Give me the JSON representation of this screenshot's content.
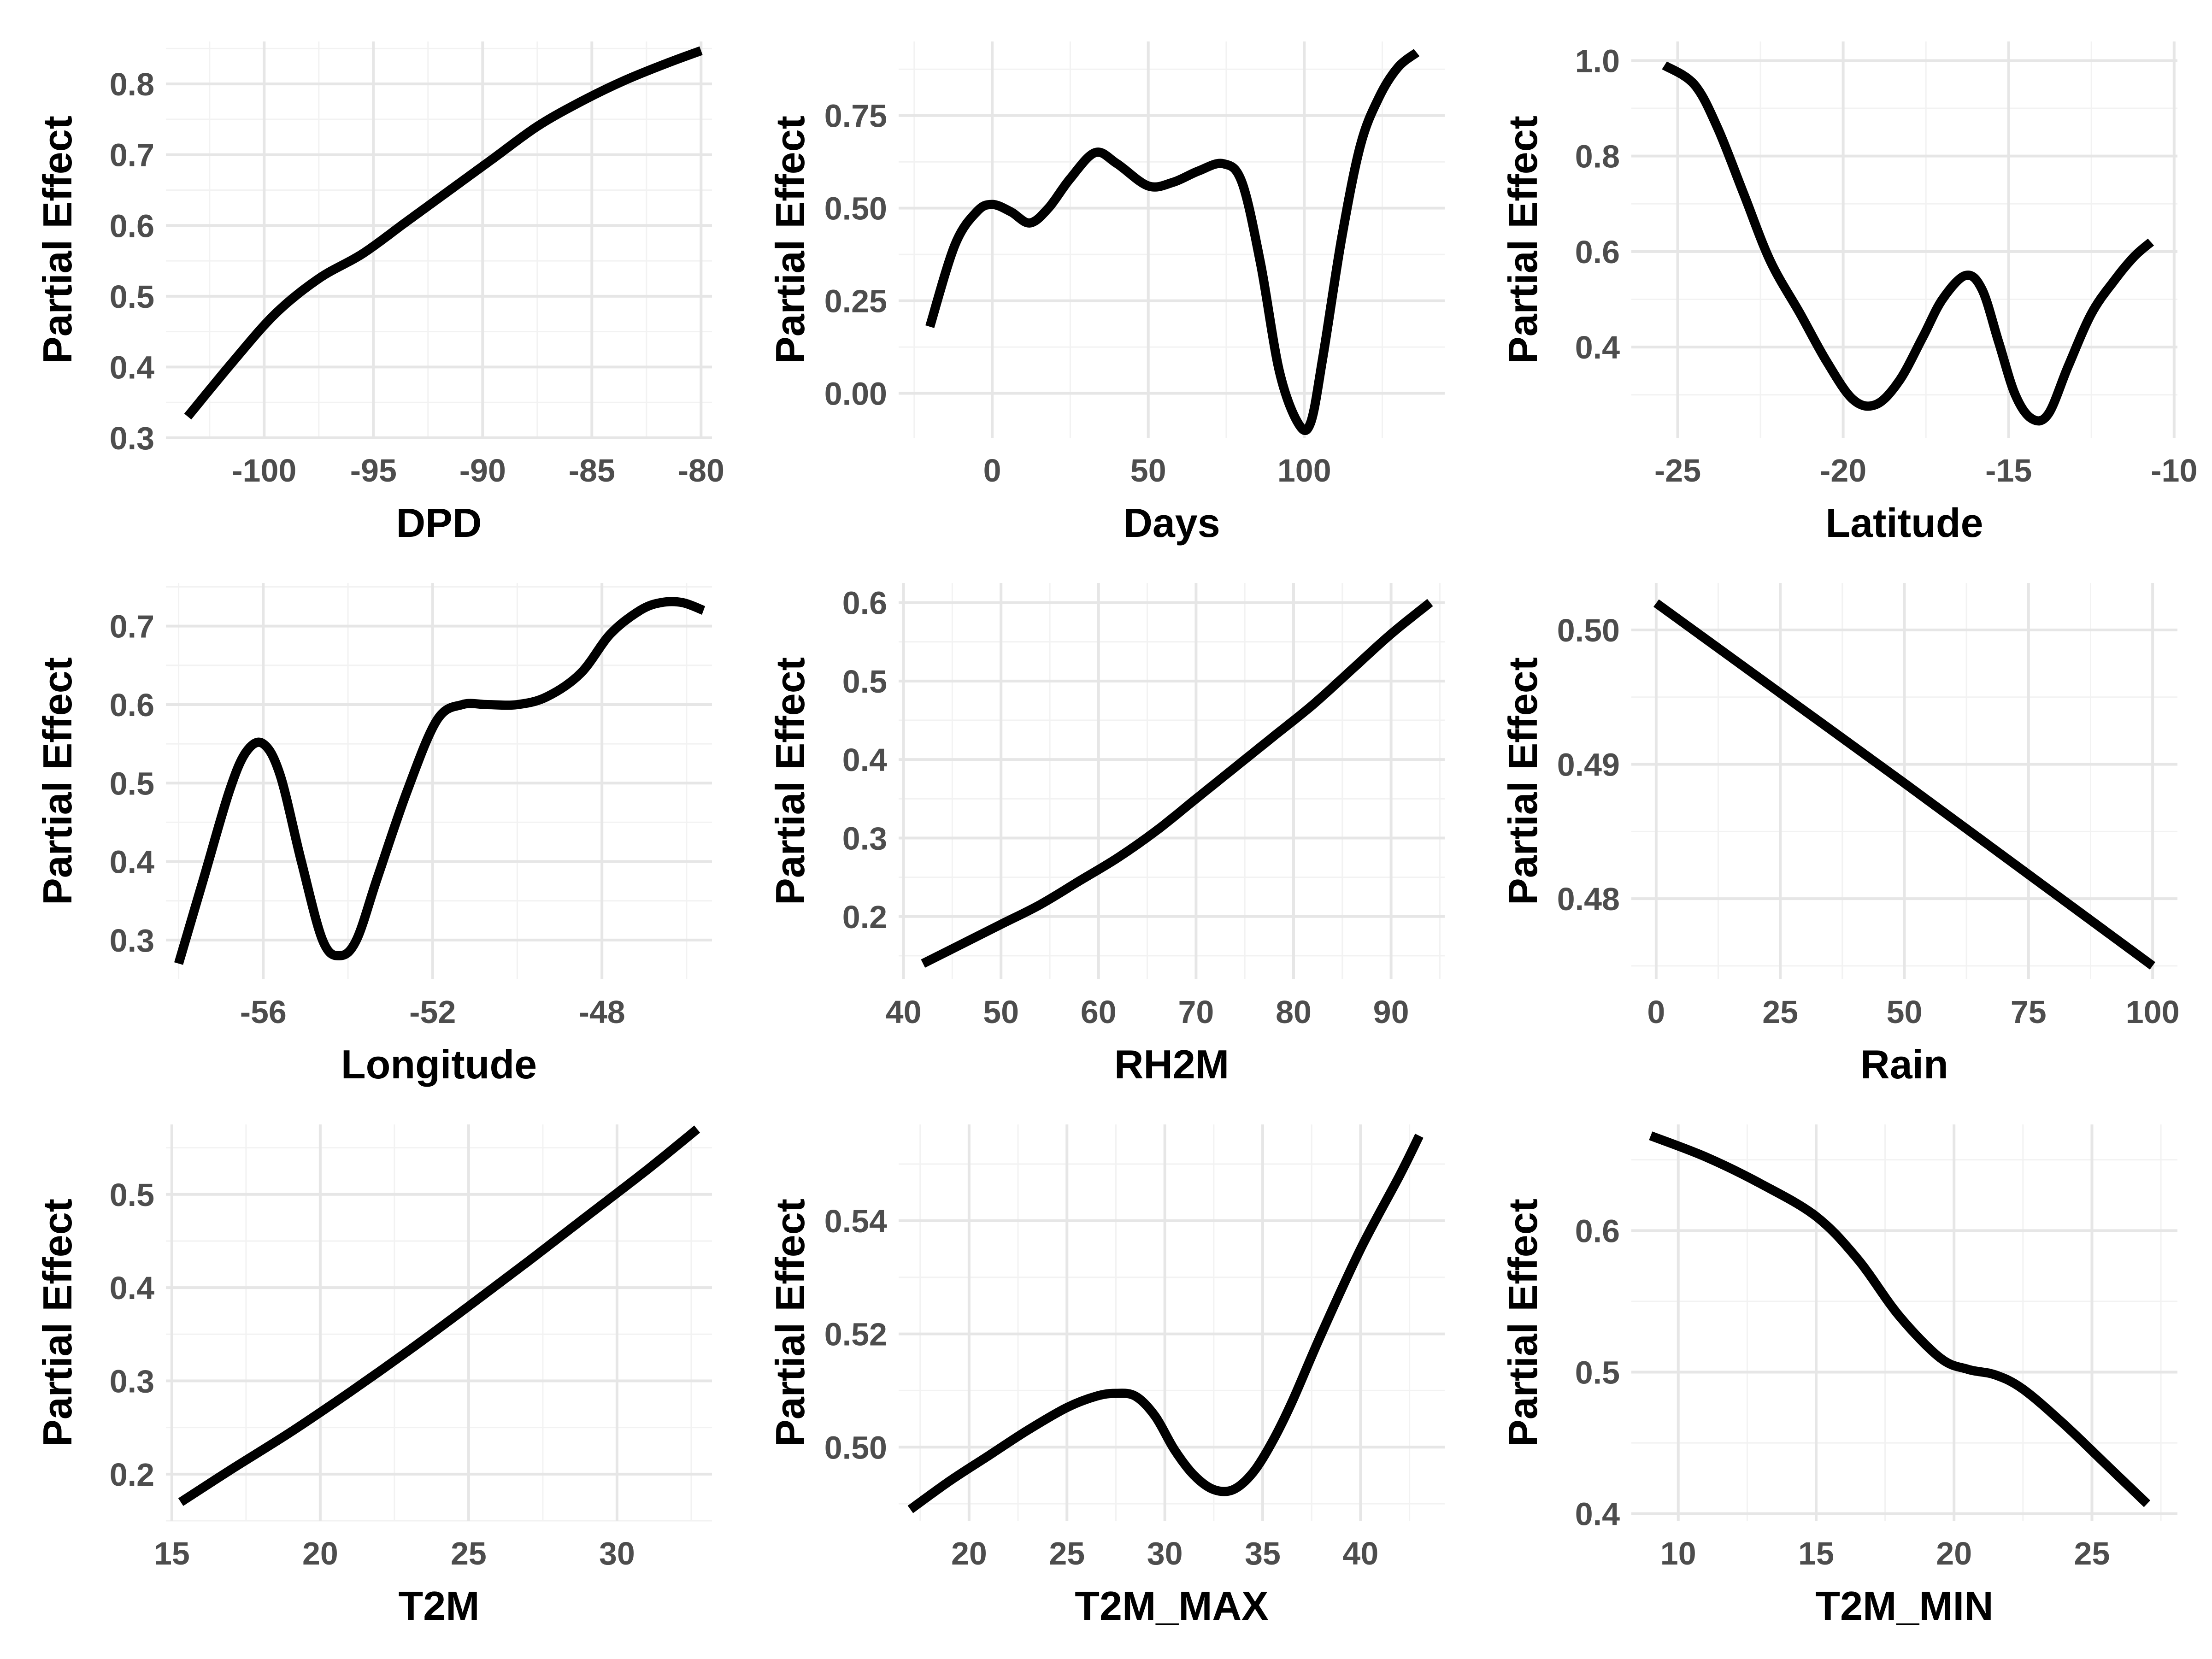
{
  "chart_data": [
    {
      "type": "line",
      "xlabel": "DPD",
      "ylabel": "Partial Effect",
      "xlim": [
        -104.5,
        -79.5
      ],
      "ylim": [
        0.3,
        0.86
      ],
      "xticks": [
        -100,
        -95,
        -90,
        -85,
        -80
      ],
      "xtick_labels": [
        "-100",
        "-95",
        "-90",
        "-85",
        "-80"
      ],
      "yticks": [
        0.3,
        0.4,
        0.5,
        0.6,
        0.7,
        0.8
      ],
      "ytick_labels": [
        "0.3",
        "0.4",
        "0.5",
        "0.6",
        "0.7",
        "0.8"
      ],
      "grid": true,
      "x": [
        -103.5,
        -101.5,
        -99.5,
        -97.5,
        -95.5,
        -93.5,
        -91.5,
        -89.5,
        -87.5,
        -85.5,
        -83.5,
        -81.5,
        -80
      ],
      "y": [
        0.33,
        0.405,
        0.475,
        0.525,
        0.56,
        0.605,
        0.65,
        0.695,
        0.74,
        0.775,
        0.805,
        0.83,
        0.847
      ]
    },
    {
      "type": "line",
      "xlabel": "Days",
      "ylabel": "Partial Effect",
      "xlim": [
        -30,
        145
      ],
      "ylim": [
        -0.12,
        0.95
      ],
      "xticks": [
        0,
        50,
        100
      ],
      "xtick_labels": [
        "0",
        "50",
        "100"
      ],
      "yticks": [
        0.0,
        0.25,
        0.5,
        0.75
      ],
      "ytick_labels": [
        "0.00",
        "0.25",
        "0.50",
        "0.75"
      ],
      "grid": true,
      "x": [
        -20,
        -12,
        -5,
        0,
        6,
        12,
        18,
        25,
        33,
        40,
        50,
        58,
        66,
        74,
        80,
        86,
        92,
        98,
        102,
        106,
        112,
        118,
        124,
        130,
        136
      ],
      "y": [
        0.18,
        0.4,
        0.49,
        0.51,
        0.49,
        0.46,
        0.5,
        0.58,
        0.65,
        0.62,
        0.56,
        0.57,
        0.6,
        0.62,
        0.57,
        0.35,
        0.06,
        -0.08,
        -0.08,
        0.1,
        0.42,
        0.67,
        0.8,
        0.88,
        0.92
      ]
    },
    {
      "type": "line",
      "xlabel": "Latitude",
      "ylabel": "Partial Effect",
      "xlim": [
        -26.4,
        -9.9
      ],
      "ylim": [
        0.21,
        1.04
      ],
      "xticks": [
        -25,
        -20,
        -15,
        -10
      ],
      "xtick_labels": [
        "-25",
        "-20",
        "-15",
        "-10"
      ],
      "yticks": [
        0.4,
        0.6,
        0.8,
        1.0
      ],
      "ytick_labels": [
        "0.4",
        "0.6",
        "0.8",
        "1.0"
      ],
      "grid": true,
      "x": [
        -25.4,
        -24.5,
        -23.8,
        -23,
        -22.2,
        -21.3,
        -20.5,
        -19.7,
        -19,
        -18.3,
        -17.6,
        -17,
        -16.3,
        -15.8,
        -15.3,
        -14.8,
        -14.3,
        -13.8,
        -13.2,
        -12.5,
        -11.8,
        -11.2,
        -10.7
      ],
      "y": [
        0.99,
        0.95,
        0.86,
        0.72,
        0.58,
        0.47,
        0.37,
        0.29,
        0.28,
        0.33,
        0.42,
        0.5,
        0.55,
        0.52,
        0.41,
        0.3,
        0.25,
        0.26,
        0.36,
        0.47,
        0.54,
        0.59,
        0.62
      ]
    },
    {
      "type": "line",
      "xlabel": "Longitude",
      "ylabel": "Partial Effect",
      "xlim": [
        -58.3,
        -45.4
      ],
      "ylim": [
        0.25,
        0.755
      ],
      "xticks": [
        -56,
        -52,
        -48
      ],
      "xtick_labels": [
        "-56",
        "-52",
        "-48"
      ],
      "yticks": [
        0.3,
        0.4,
        0.5,
        0.6,
        0.7
      ],
      "ytick_labels": [
        "0.3",
        "0.4",
        "0.5",
        "0.6",
        "0.7"
      ],
      "grid": true,
      "x": [
        -58,
        -57.4,
        -56.8,
        -56.4,
        -56,
        -55.6,
        -55.1,
        -54.6,
        -54.2,
        -53.8,
        -53.3,
        -52.6,
        -51.9,
        -51.3,
        -50.7,
        -50,
        -49.3,
        -48.5,
        -47.8,
        -47.1,
        -46.6,
        -46.1,
        -45.6
      ],
      "y": [
        0.27,
        0.38,
        0.49,
        0.54,
        0.55,
        0.51,
        0.4,
        0.3,
        0.28,
        0.3,
        0.38,
        0.49,
        0.58,
        0.6,
        0.6,
        0.6,
        0.61,
        0.64,
        0.69,
        0.72,
        0.73,
        0.73,
        0.72
      ]
    },
    {
      "type": "line",
      "xlabel": "RH2M",
      "ylabel": "Partial Effect",
      "xlim": [
        39.5,
        95.5
      ],
      "ylim": [
        0.12,
        0.625
      ],
      "xticks": [
        40,
        50,
        60,
        70,
        80,
        90
      ],
      "xtick_labels": [
        "40",
        "50",
        "60",
        "70",
        "80",
        "90"
      ],
      "yticks": [
        0.2,
        0.3,
        0.4,
        0.5,
        0.6
      ],
      "ytick_labels": [
        "0.2",
        "0.3",
        "0.4",
        "0.5",
        "0.6"
      ],
      "grid": true,
      "x": [
        42,
        46,
        50,
        54,
        58,
        62,
        66,
        70,
        74,
        78,
        82,
        86,
        90,
        94
      ],
      "y": [
        0.14,
        0.165,
        0.19,
        0.215,
        0.245,
        0.275,
        0.31,
        0.35,
        0.39,
        0.43,
        0.47,
        0.515,
        0.56,
        0.6
      ]
    },
    {
      "type": "line",
      "xlabel": "Rain",
      "ylabel": "Partial Effect",
      "xlim": [
        -5,
        105
      ],
      "ylim": [
        0.474,
        0.5035
      ],
      "xticks": [
        0,
        25,
        50,
        75,
        100
      ],
      "xtick_labels": [
        "0",
        "25",
        "50",
        "75",
        "100"
      ],
      "yticks": [
        0.48,
        0.49,
        0.5
      ],
      "ytick_labels": [
        "0.48",
        "0.49",
        "0.50"
      ],
      "grid": true,
      "x": [
        0,
        25,
        50,
        75,
        100
      ],
      "y": [
        0.502,
        0.4953,
        0.4886,
        0.4818,
        0.475
      ]
    },
    {
      "type": "line",
      "xlabel": "T2M",
      "ylabel": "Partial Effect",
      "xlim": [
        14.8,
        33.2
      ],
      "ylim": [
        0.15,
        0.575
      ],
      "xticks": [
        15,
        20,
        25,
        30
      ],
      "xtick_labels": [
        "15",
        "20",
        "25",
        "30"
      ],
      "yticks": [
        0.2,
        0.3,
        0.4,
        0.5
      ],
      "ytick_labels": [
        "0.2",
        "0.3",
        "0.4",
        "0.5"
      ],
      "grid": true,
      "x": [
        15.3,
        17,
        19,
        21,
        23,
        25,
        27,
        29,
        31,
        32.7
      ],
      "y": [
        0.17,
        0.205,
        0.245,
        0.288,
        0.333,
        0.38,
        0.428,
        0.477,
        0.526,
        0.57
      ]
    },
    {
      "type": "line",
      "xlabel": "T2M_MAX",
      "ylabel": "Partial Effect",
      "xlim": [
        16.4,
        44.3
      ],
      "ylim": [
        0.487,
        0.557
      ],
      "xticks": [
        20,
        25,
        30,
        35,
        40
      ],
      "xtick_labels": [
        "20",
        "25",
        "30",
        "35",
        "40"
      ],
      "yticks": [
        0.5,
        0.52,
        0.54
      ],
      "ytick_labels": [
        "0.50",
        "0.52",
        "0.54"
      ],
      "grid": true,
      "x": [
        17,
        19,
        21,
        23,
        25,
        26.5,
        27.5,
        28.5,
        29.5,
        30.5,
        31.5,
        32.5,
        33.5,
        34.5,
        35.5,
        36.5,
        38,
        40,
        42,
        43
      ],
      "y": [
        0.489,
        0.494,
        0.4985,
        0.503,
        0.507,
        0.509,
        0.5095,
        0.509,
        0.5055,
        0.4995,
        0.495,
        0.4925,
        0.4925,
        0.4955,
        0.501,
        0.508,
        0.52,
        0.535,
        0.548,
        0.555
      ]
    },
    {
      "type": "line",
      "xlabel": "T2M_MIN",
      "ylabel": "Partial Effect",
      "xlim": [
        8.3,
        28.1
      ],
      "ylim": [
        0.395,
        0.675
      ],
      "xticks": [
        10,
        15,
        20,
        25
      ],
      "xtick_labels": [
        "10",
        "15",
        "20",
        "25"
      ],
      "yticks": [
        0.4,
        0.5,
        0.6
      ],
      "ytick_labels": [
        "0.4",
        "0.5",
        "0.6"
      ],
      "grid": true,
      "x": [
        9,
        11,
        13,
        15,
        16.5,
        18,
        19.5,
        20.5,
        21.5,
        22.5,
        24,
        25.5,
        27
      ],
      "y": [
        0.667,
        0.652,
        0.633,
        0.61,
        0.58,
        0.54,
        0.51,
        0.502,
        0.498,
        0.488,
        0.463,
        0.435,
        0.407
      ]
    }
  ]
}
